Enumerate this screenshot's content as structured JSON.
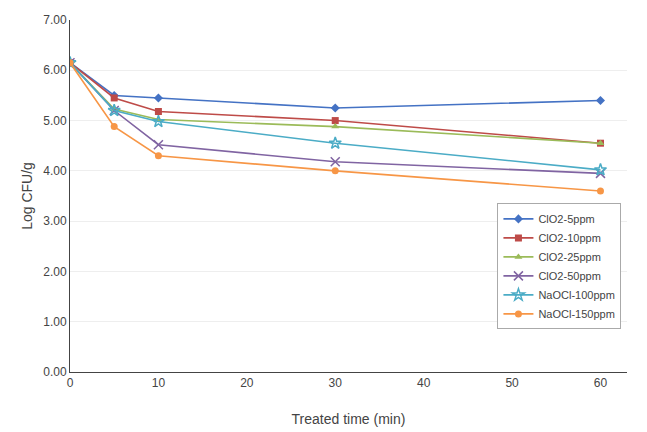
{
  "chart_data": {
    "type": "line",
    "x": [
      0,
      5,
      10,
      30,
      60
    ],
    "series": [
      {
        "name": "ClO2-5ppm",
        "color": "#4472C4",
        "marker": "diamond",
        "values": [
          6.15,
          5.5,
          5.45,
          5.25,
          5.4
        ]
      },
      {
        "name": "ClO2-10ppm",
        "color": "#BE4B48",
        "marker": "square",
        "values": [
          6.15,
          5.45,
          5.18,
          5.0,
          4.55
        ]
      },
      {
        "name": "ClO2-25ppm",
        "color": "#9BBB59",
        "marker": "triangle-up",
        "values": [
          6.15,
          5.23,
          5.02,
          4.88,
          4.55
        ]
      },
      {
        "name": "ClO2-50ppm",
        "color": "#8064A2",
        "marker": "x",
        "values": [
          6.15,
          5.2,
          4.52,
          4.18,
          3.95
        ]
      },
      {
        "name": "NaOCl-100ppm",
        "color": "#4BACC6",
        "marker": "star",
        "values": [
          6.15,
          5.2,
          4.98,
          4.55,
          4.02
        ]
      },
      {
        "name": "NaOCl-150ppm",
        "color": "#F79646",
        "marker": "circle",
        "values": [
          6.15,
          4.88,
          4.3,
          4.0,
          3.6
        ]
      }
    ],
    "xlabel": "Treated time (min)",
    "ylabel": "Log CFU/g",
    "xlim": [
      0,
      63
    ],
    "ylim": [
      0.0,
      7.0
    ],
    "xticks": [
      0,
      10,
      20,
      30,
      40,
      50,
      60
    ],
    "yticks": [
      {
        "value": 0,
        "label": "0.00"
      },
      {
        "value": 1,
        "label": "1.00"
      },
      {
        "value": 2,
        "label": "2.00"
      },
      {
        "value": 3,
        "label": "3.00"
      },
      {
        "value": 4,
        "label": "4.00"
      },
      {
        "value": 5,
        "label": "5.00"
      },
      {
        "value": 6,
        "label": "6.00"
      },
      {
        "value": 7,
        "label": "7.00"
      }
    ],
    "grid": "y",
    "legend": "right"
  }
}
